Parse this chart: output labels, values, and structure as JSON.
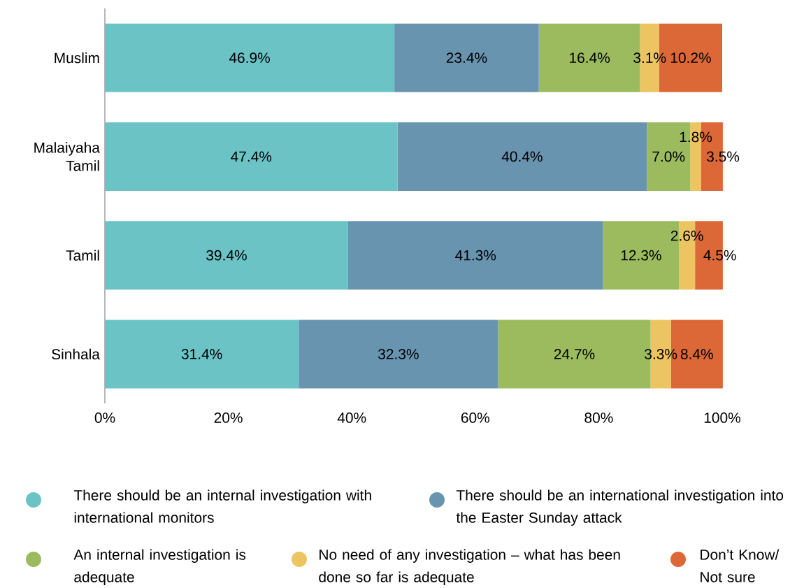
{
  "chart_data": {
    "type": "bar",
    "orientation": "horizontal",
    "stacked": true,
    "legend": "bottom",
    "categories": [
      "Muslim",
      "Malaiyaha Tamil",
      "Tamil",
      "Sinhala"
    ],
    "xlim": [
      0,
      100
    ],
    "xticks": [
      {
        "value": 0,
        "label": "0%"
      },
      {
        "value": 20,
        "label": "20%"
      },
      {
        "value": 40,
        "label": "40%"
      },
      {
        "value": 60,
        "label": "60%"
      },
      {
        "value": 80,
        "label": "80%"
      },
      {
        "value": 100,
        "label": "100%"
      }
    ],
    "series": [
      {
        "name": "There should be an internal investigation with international monitors",
        "color": "#6cc3c6",
        "values": [
          46.9,
          47.4,
          39.4,
          31.4
        ],
        "value_labels": [
          "46.9%",
          "47.4%",
          "39.4%",
          "31.4%"
        ]
      },
      {
        "name": "There should be an international investigation into the Easter Sunday attack",
        "color": "#6894b0",
        "values": [
          23.4,
          40.4,
          41.3,
          32.3
        ],
        "value_labels": [
          "23.4%",
          "40.4%",
          "41.3%",
          "32.3%"
        ]
      },
      {
        "name": "An internal investigation is adequate",
        "color": "#9bbb5e",
        "values": [
          16.4,
          7.0,
          12.3,
          24.7
        ],
        "value_labels": [
          "16.4%",
          "7.0%",
          "12.3%",
          "24.7%"
        ]
      },
      {
        "name": "No need of any investigation – what has been done so far is adequate",
        "color": "#ecc461",
        "values": [
          3.1,
          1.8,
          2.6,
          3.3
        ],
        "value_labels": [
          "3.1%",
          "1.8%",
          "2.6%",
          "3.3%"
        ]
      },
      {
        "name": "Don’t Know/ Not sure",
        "color": "#dc6737",
        "values": [
          10.2,
          3.5,
          4.5,
          8.4
        ],
        "value_labels": [
          "10.2%",
          "3.5%",
          "4.5%",
          "8.4%"
        ]
      }
    ]
  }
}
